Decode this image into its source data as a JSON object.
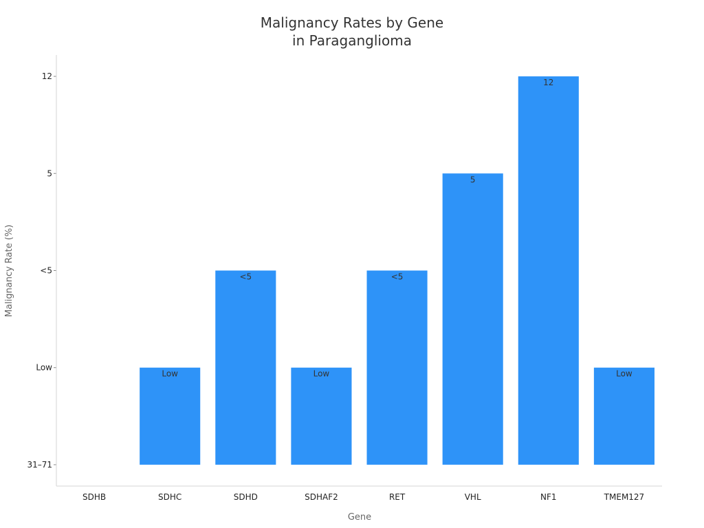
{
  "chart_data": {
    "type": "bar",
    "title_lines": [
      "Malignancy Rates by Gene",
      "in Paraganglioma"
    ],
    "xlabel": "Gene",
    "ylabel": "Malignancy Rate (%)",
    "categories": [
      "SDHB",
      "SDHC",
      "SDHD",
      "SDHAF2",
      "RET",
      "VHL",
      "NF1",
      "TMEM127"
    ],
    "y_categories": [
      "31–71",
      "Low",
      "<5",
      "5",
      "12"
    ],
    "values": [
      0,
      1,
      2,
      1,
      2,
      3,
      4,
      1
    ],
    "labels": [
      "",
      "Low",
      "<5",
      "Low",
      "<5",
      "5",
      "12",
      "Low"
    ],
    "ylim": [
      -0.22,
      4.22
    ],
    "bar_color": "#2e93f8",
    "grid": false,
    "legend": "none"
  }
}
